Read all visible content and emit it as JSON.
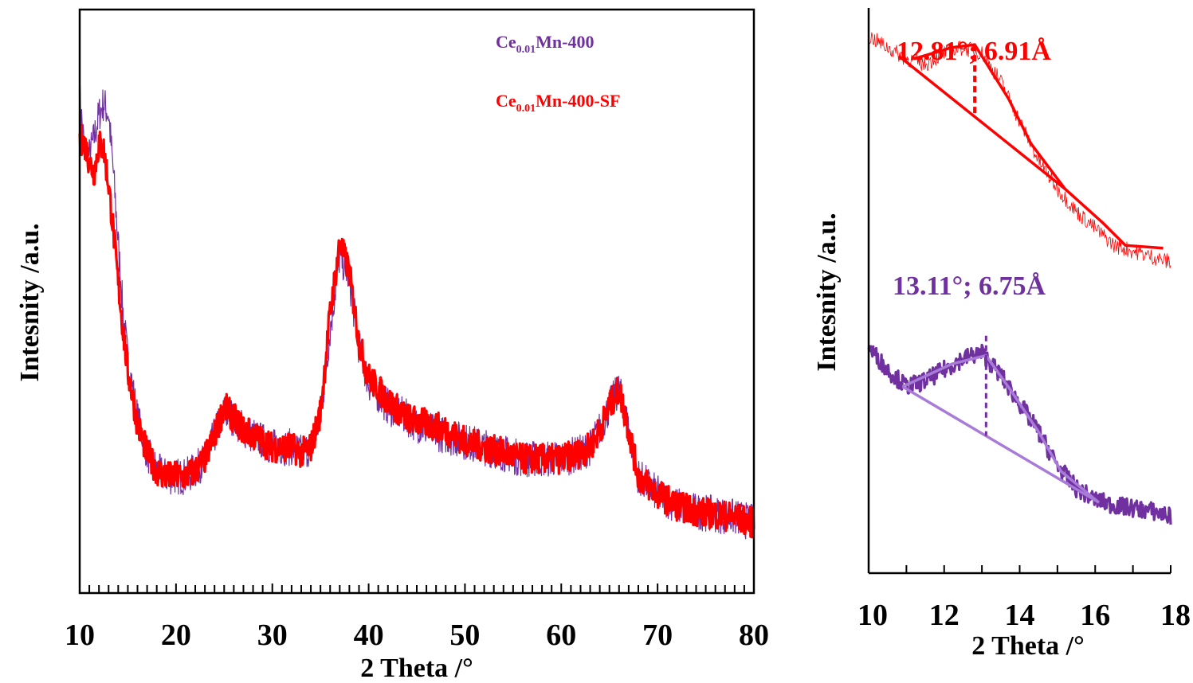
{
  "colors": {
    "purple": "#7030a0",
    "red": "#ff0000",
    "light_purple": "#a97bd8",
    "axis": "#000000"
  },
  "chart_data": [
    {
      "type": "line",
      "title": "",
      "xlabel": "2 Theta /°",
      "ylabel": "Intesnity /a.u.",
      "xlim": [
        10,
        80
      ],
      "xticks": [
        "10",
        "20",
        "30",
        "40",
        "50",
        "60",
        "70",
        "80"
      ],
      "yticks_shown": false,
      "legend_position": "top-center",
      "legend": [
        {
          "name_main": "Ce",
          "name_sub": "0.01",
          "name_rest": "Mn-400",
          "color": "#7030a0"
        },
        {
          "name_main": "Ce",
          "name_sub": "0.01",
          "name_rest": "Mn-400-SF",
          "color": "#ff0000"
        }
      ],
      "series": [
        {
          "name": "Ce0.01Mn-400",
          "color": "#7030a0",
          "x": [
            10,
            10.5,
            11,
            11.5,
            12,
            12.5,
            13,
            13.5,
            14,
            14.5,
            15,
            16,
            17,
            18,
            19,
            20,
            21,
            22,
            23,
            24,
            25,
            26,
            27,
            28,
            29,
            30,
            31,
            32,
            33,
            34,
            35,
            36,
            37,
            38,
            39,
            40,
            42,
            44,
            46,
            48,
            50,
            52,
            54,
            56,
            58,
            60,
            62,
            63,
            64,
            65,
            66,
            67,
            68,
            70,
            72,
            74,
            76,
            78,
            80
          ],
          "y": [
            85,
            76,
            75,
            78,
            82,
            84,
            82,
            72,
            60,
            48,
            40,
            30,
            24,
            21,
            20,
            20,
            20,
            21,
            23,
            27,
            31,
            30,
            28,
            27,
            26,
            25,
            25,
            25,
            24,
            25,
            30,
            45,
            58,
            54,
            42,
            36,
            32,
            30,
            28,
            27,
            26,
            25,
            24,
            23,
            23,
            23,
            24,
            25,
            28,
            32,
            35,
            28,
            20,
            17,
            15,
            14,
            13.5,
            13,
            12
          ]
        },
        {
          "name": "Ce0.01Mn-400-SF",
          "color": "#ff0000",
          "x": [
            10,
            10.5,
            11,
            11.5,
            12,
            12.5,
            13,
            13.5,
            14,
            14.5,
            15,
            16,
            17,
            18,
            19,
            20,
            21,
            22,
            23,
            24,
            25,
            26,
            27,
            28,
            29,
            30,
            31,
            32,
            33,
            34,
            35,
            36,
            37,
            38,
            39,
            40,
            42,
            44,
            46,
            48,
            50,
            52,
            54,
            56,
            58,
            60,
            62,
            63,
            64,
            65,
            66,
            67,
            68,
            70,
            72,
            74,
            76,
            78,
            80
          ],
          "y": [
            78,
            77,
            74,
            72,
            77,
            76,
            70,
            62,
            53,
            45,
            38,
            29,
            24,
            21,
            20,
            20,
            20,
            21,
            23,
            27,
            32,
            30,
            28,
            27,
            26,
            25,
            25,
            25,
            24,
            25,
            31,
            48,
            60,
            55,
            43,
            37,
            33,
            30,
            29,
            28,
            26,
            25,
            24,
            23,
            23,
            23,
            24,
            25,
            28,
            32,
            35,
            28,
            20,
            17,
            15,
            14,
            13.5,
            13,
            12
          ]
        }
      ]
    },
    {
      "type": "line",
      "title": "",
      "xlabel": "2 Theta /°",
      "ylabel": "Intesnity /a.u.",
      "xlim": [
        10,
        18
      ],
      "xticks": [
        "10",
        "12",
        "14",
        "16",
        "18"
      ],
      "yticks_shown": false,
      "annotations": [
        {
          "text": "12.81°; 6.91Å",
          "color": "#ff0000",
          "x": 12.81
        },
        {
          "text": "13.11°; 6.75Å",
          "color": "#7030a0",
          "x": 13.11
        }
      ],
      "series": [
        {
          "name": "Ce0.01Mn-400-SF",
          "color": "#ff0000",
          "x": [
            10,
            10.5,
            11,
            11.5,
            12,
            12.5,
            13,
            13.5,
            14,
            14.5,
            15,
            15.5,
            16,
            16.5,
            17,
            17.5,
            18
          ],
          "y": [
            95,
            93,
            91,
            90,
            92,
            93,
            92,
            87,
            80,
            73,
            68,
            64,
            61,
            58,
            57,
            56,
            55
          ]
        },
        {
          "name": "Ce0.01Mn-400",
          "color": "#7030a0",
          "x": [
            10,
            10.5,
            11,
            11.5,
            12,
            12.5,
            13,
            13.5,
            14,
            14.5,
            15,
            15.5,
            16,
            16.5,
            17,
            17.5,
            18
          ],
          "y": [
            40,
            36,
            33,
            34,
            36,
            38,
            39,
            35,
            30,
            25,
            19,
            15,
            13,
            12,
            11.5,
            11,
            10
          ]
        },
        {
          "name": "Ce0.01Mn-400-SF fit",
          "color": "#ff0000",
          "x": [
            11.2,
            12.2,
            12.81,
            13.7,
            14.3,
            15.2,
            16.2,
            16.8,
            17.8
          ],
          "y": [
            91,
            93,
            93.5,
            84,
            76,
            68,
            62,
            58,
            57.5
          ]
        },
        {
          "name": "Ce0.01Mn-400-SF baseline",
          "color": "#ff0000",
          "x": [
            10.8,
            15.2
          ],
          "y": [
            91.5,
            68
          ]
        },
        {
          "name": "Ce0.01Mn-400 fit",
          "color": "#a97bd8",
          "x": [
            10.9,
            12.2,
            13.11,
            13.8,
            14.5,
            15.1,
            16.1
          ],
          "y": [
            33,
            37,
            38.5,
            32,
            25,
            18,
            12.5
          ]
        },
        {
          "name": "Ce0.01Mn-400 baseline",
          "color": "#a97bd8",
          "x": [
            10.9,
            16.1
          ],
          "y": [
            33,
            12.5
          ]
        }
      ]
    }
  ]
}
